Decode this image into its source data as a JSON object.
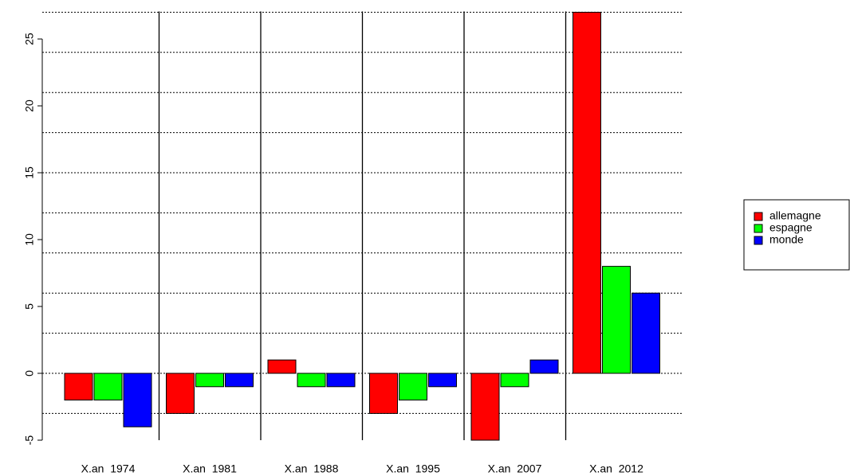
{
  "chart_data": {
    "type": "bar",
    "categories": [
      "X.an  1974",
      "X.an  1981",
      "X.an  1988",
      "X.an  1995",
      "X.an  2007",
      "X.an  2012"
    ],
    "series": [
      {
        "name": "allemagne",
        "color": "#ff0000",
        "values": [
          -2,
          -3,
          1,
          -3,
          -5,
          27
        ]
      },
      {
        "name": "espagne",
        "color": "#00ff00",
        "values": [
          -2,
          -1,
          -1,
          -2,
          -1,
          8
        ]
      },
      {
        "name": "monde",
        "color": "#0000ff",
        "values": [
          -4,
          -1,
          -1,
          -1,
          1,
          6
        ]
      }
    ],
    "ylim": [
      -5,
      27
    ],
    "yticks": [
      -5,
      0,
      5,
      10,
      15,
      20,
      25
    ],
    "hgrid": [
      -3,
      0,
      3,
      6,
      9,
      12,
      15,
      18,
      21,
      24,
      27
    ],
    "legend": "right"
  }
}
